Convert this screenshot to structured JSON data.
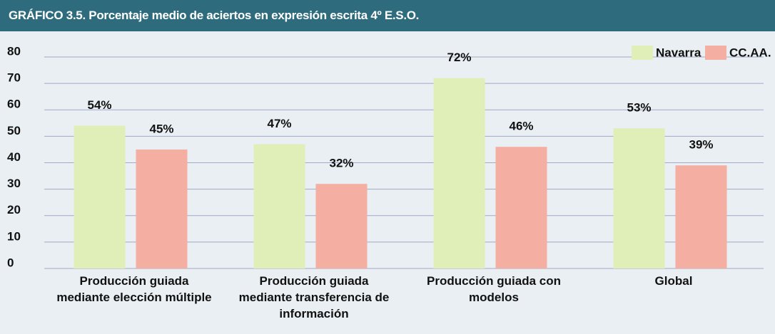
{
  "chart_data": {
    "type": "bar",
    "title": "GRÁFICO 3.5. Porcentaje medio de aciertos en expresión escrita 4º E.S.O.",
    "categories": [
      "Producción guiada mediante elección múltiple",
      "Producción guiada mediante transferencia de información",
      "Producción guiada con modelos",
      "Global"
    ],
    "series": [
      {
        "name": "Navarra",
        "color": "#e0efb8",
        "values": [
          54,
          47,
          72,
          53
        ],
        "value_labels": [
          "54%",
          "47%",
          "72%",
          "53%"
        ]
      },
      {
        "name": "CC.AA.",
        "color": "#f4aea2",
        "values": [
          45,
          32,
          46,
          39
        ],
        "value_labels": [
          "45%",
          "32%",
          "46%",
          "39%"
        ]
      }
    ],
    "ylim": [
      0,
      80
    ],
    "yticks": [
      0,
      10,
      20,
      30,
      40,
      50,
      60,
      70,
      80
    ],
    "grid": true,
    "legend": "top-right"
  }
}
